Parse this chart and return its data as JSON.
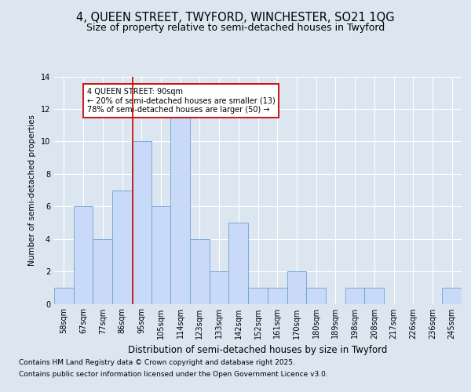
{
  "title1": "4, QUEEN STREET, TWYFORD, WINCHESTER, SO21 1QG",
  "title2": "Size of property relative to semi-detached houses in Twyford",
  "xlabel": "Distribution of semi-detached houses by size in Twyford",
  "ylabel": "Number of semi-detached properties",
  "categories": [
    "58sqm",
    "67sqm",
    "77sqm",
    "86sqm",
    "95sqm",
    "105sqm",
    "114sqm",
    "123sqm",
    "133sqm",
    "142sqm",
    "152sqm",
    "161sqm",
    "170sqm",
    "180sqm",
    "189sqm",
    "198sqm",
    "208sqm",
    "217sqm",
    "226sqm",
    "236sqm",
    "245sqm"
  ],
  "values": [
    1,
    6,
    4,
    7,
    10,
    6,
    12,
    4,
    2,
    5,
    1,
    1,
    2,
    1,
    0,
    1,
    1,
    0,
    0,
    0,
    1
  ],
  "bar_color": "#c9daf8",
  "bar_edge_color": "#6fa0d0",
  "background_color": "#dce6f1",
  "plot_bg_color": "#dce6f1",
  "grid_color": "#ffffff",
  "annotation_line1": "4 QUEEN STREET: 90sqm",
  "annotation_line2": "← 20% of semi-detached houses are smaller (13)",
  "annotation_line3": "78% of semi-detached houses are larger (50) →",
  "annotation_box_color": "#ffffff",
  "annotation_box_edge_color": "#cc0000",
  "red_line_x": 3.55,
  "ylim": [
    0,
    14
  ],
  "yticks": [
    0,
    2,
    4,
    6,
    8,
    10,
    12,
    14
  ],
  "footer1": "Contains HM Land Registry data © Crown copyright and database right 2025.",
  "footer2": "Contains public sector information licensed under the Open Government Licence v3.0.",
  "title1_fontsize": 10.5,
  "title2_fontsize": 9,
  "xlabel_fontsize": 8.5,
  "ylabel_fontsize": 7.5,
  "tick_fontsize": 7,
  "annotation_fontsize": 7,
  "footer_fontsize": 6.5
}
